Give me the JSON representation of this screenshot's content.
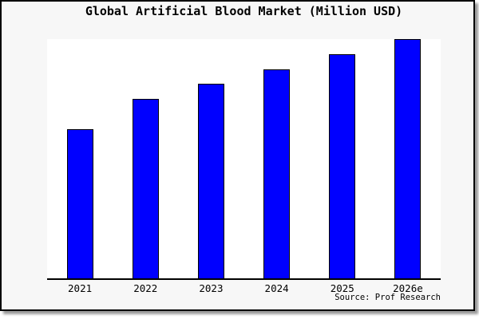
{
  "chart_data": {
    "type": "bar",
    "title": "Global Artificial Blood Market (Million USD)",
    "categories": [
      "2021",
      "2022",
      "2023",
      "2024",
      "2025",
      "2026e"
    ],
    "values": [
      500,
      600,
      650,
      700,
      750,
      800
    ],
    "xlabel": "",
    "ylabel": "",
    "ylim": [
      0,
      800
    ],
    "grid": false,
    "legend": "none",
    "y_axis_visible": false,
    "source": "Source: Prof Research",
    "colors": {
      "bar_fill": "#0000ff",
      "bar_border": "#000000",
      "axis_line": "#000000",
      "plot_background": "#ffffff",
      "figure_background": "#f7f7f7",
      "frame_border": "#000000",
      "title_text": "#000000"
    }
  }
}
